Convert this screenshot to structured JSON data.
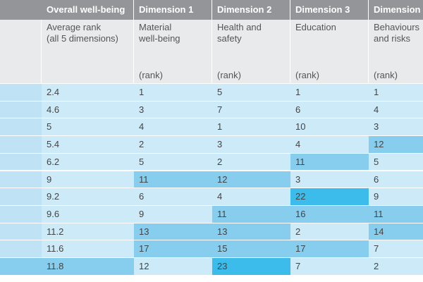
{
  "colors": {
    "header_bg": "#939598",
    "subheader_bg": "#e9eaeb",
    "first_col_bg": "#bfe3f4",
    "cell_light": "#cdeaf8",
    "cell_mid": "#86cdee",
    "cell_dark": "#3cbcea",
    "text": "#444444"
  },
  "headers": [
    "",
    "Overall well-being",
    "Dimension 1",
    "Dimension 2",
    "Dimension 3",
    "Dimension"
  ],
  "subheaders": [
    [
      "",
      ""
    ],
    [
      "Average rank",
      "(all 5 dimensions)"
    ],
    [
      "Material",
      "well-being"
    ],
    [
      "Health and",
      "safety"
    ],
    [
      "Education",
      ""
    ],
    [
      "Behaviours",
      "and risks"
    ]
  ],
  "units": [
    "",
    "",
    "(rank)",
    "(rank)",
    "(rank)",
    "(rank)"
  ],
  "rows": [
    {
      "cells": [
        "",
        "2.4",
        "1",
        "5",
        "1",
        "1"
      ],
      "shade": [
        "first",
        "light",
        "light",
        "light",
        "light",
        "light"
      ]
    },
    {
      "cells": [
        "",
        "4.6",
        "3",
        "7",
        "6",
        "4"
      ],
      "shade": [
        "first",
        "light",
        "light",
        "light",
        "light",
        "light"
      ]
    },
    {
      "cells": [
        "",
        "5",
        "4",
        "1",
        "10",
        "3"
      ],
      "shade": [
        "first",
        "light",
        "light",
        "light",
        "light",
        "light"
      ]
    },
    {
      "cells": [
        "",
        "5.4",
        "2",
        "3",
        "4",
        "12"
      ],
      "shade": [
        "first",
        "light",
        "light",
        "light",
        "light",
        "mid"
      ]
    },
    {
      "cells": [
        "",
        "6.2",
        "5",
        "2",
        "11",
        "5"
      ],
      "shade": [
        "first",
        "light",
        "light",
        "light",
        "mid",
        "light"
      ]
    },
    {
      "cells": [
        "",
        "9",
        "11",
        "12",
        "3",
        "6"
      ],
      "shade": [
        "first",
        "light",
        "mid",
        "mid",
        "light",
        "light"
      ]
    },
    {
      "cells": [
        "",
        "9.2",
        "6",
        "4",
        "22",
        "9"
      ],
      "shade": [
        "first",
        "light",
        "light",
        "light",
        "dark",
        "light"
      ]
    },
    {
      "cells": [
        "",
        "9.6",
        "9",
        "11",
        "16",
        "11"
      ],
      "shade": [
        "first",
        "light",
        "light",
        "mid",
        "mid",
        "mid"
      ]
    },
    {
      "cells": [
        "",
        "11.2",
        "13",
        "13",
        "2",
        "14"
      ],
      "shade": [
        "first",
        "light",
        "mid",
        "mid",
        "light",
        "mid"
      ]
    },
    {
      "cells": [
        "",
        "11.6",
        "17",
        "15",
        "17",
        "7"
      ],
      "shade": [
        "first",
        "light",
        "mid",
        "mid",
        "mid",
        "light"
      ]
    },
    {
      "cells": [
        "",
        "11.8",
        "12",
        "23",
        "7",
        "2"
      ],
      "shade": [
        "mid",
        "mid",
        "light",
        "dark",
        "light",
        "light"
      ]
    }
  ]
}
